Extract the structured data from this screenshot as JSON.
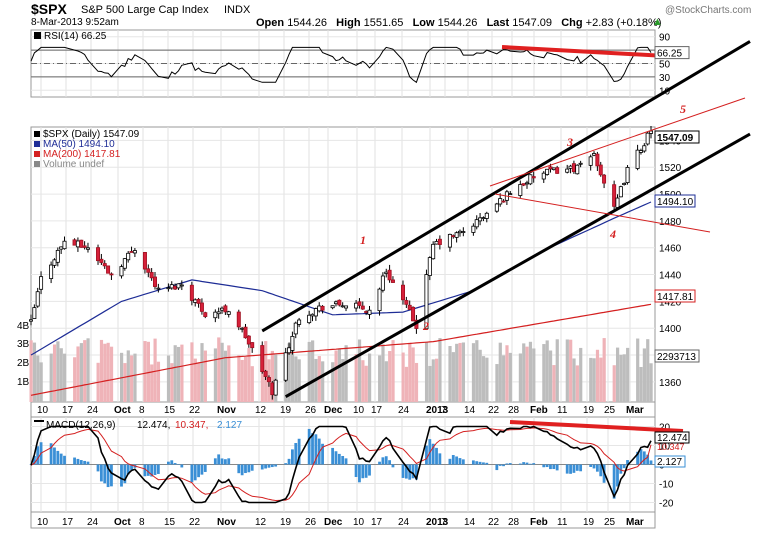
{
  "header": {
    "symbol": "$SPX",
    "name": "S&P 500 Large Cap Index",
    "exchange": "INDX",
    "timestamp": "8-Mar-2013 9:52am",
    "open_label": "Open",
    "open": "1544.26",
    "high_label": "High",
    "high": "1551.65",
    "low_label": "Low",
    "low": "1544.26",
    "last_label": "Last",
    "last": "1547.09",
    "chg_label": "Chg",
    "chg": "+2.83 (+0.18%)",
    "watermark": "@StockCharts.com"
  },
  "rsi": {
    "legend": "RSI(14) 66.25",
    "current": 66.25,
    "current_label": "66.25",
    "ticks": [
      90,
      70,
      50,
      30,
      10
    ],
    "levels": [
      70,
      50,
      30
    ]
  },
  "price": {
    "legend": [
      "$SPX (Daily) 1547.09",
      "MA(50) 1494.10",
      "MA(200) 1417.81",
      "Volume undef"
    ],
    "last_label": "1547.09",
    "ma50_label": "1494.10",
    "ma200_label": "1417.81",
    "volume_label": "2293713",
    "y_ticks": [
      1540,
      1520,
      1500,
      1480,
      1460,
      1440,
      1420,
      1400,
      1380,
      1360
    ],
    "volume_ticks": [
      "4B",
      "3B",
      "2B",
      "1B"
    ],
    "annotations": [
      "1",
      "2",
      "3",
      "4",
      "5"
    ]
  },
  "macd": {
    "legend_name": "MACD(12,26,9)",
    "macd_value": "12.474",
    "signal_value": "10.347",
    "hist_value": "2.127",
    "ticks": [
      20,
      10,
      0,
      -10,
      -20
    ]
  },
  "x_labels": [
    "10",
    "17",
    "24",
    "Oct",
    "8",
    "15",
    "22",
    "Nov",
    "12",
    "19",
    "26",
    "Dec",
    "10",
    "17",
    "24",
    "2013",
    "7",
    "14",
    "22",
    "28",
    "Feb",
    "11",
    "19",
    "25",
    "Mar"
  ],
  "chart_data": {
    "type": "candlestick",
    "title": "$SPX S&P 500 Large Cap Index INDX",
    "x_range": [
      "2012-09-04",
      "2013-03-08"
    ],
    "price": {
      "ylim": [
        1345,
        1550
      ],
      "close_path": [
        [
          "2012-09-04",
          1404
        ],
        [
          "2012-09-07",
          1437
        ],
        [
          "2012-09-14",
          1465
        ],
        [
          "2012-09-21",
          1460
        ],
        [
          "2012-09-28",
          1440
        ],
        [
          "2012-10-05",
          1460
        ],
        [
          "2012-10-12",
          1428
        ],
        [
          "2012-10-19",
          1433
        ],
        [
          "2012-10-26",
          1411
        ],
        [
          "2012-11-02",
          1414
        ],
        [
          "2012-11-07",
          1394
        ],
        [
          "2012-11-15",
          1353
        ],
        [
          "2012-11-23",
          1409
        ],
        [
          "2012-11-30",
          1416
        ],
        [
          "2012-12-07",
          1418
        ],
        [
          "2012-12-14",
          1413
        ],
        [
          "2012-12-19",
          1443
        ],
        [
          "2012-12-28",
          1402
        ],
        [
          "2013-01-02",
          1462
        ],
        [
          "2013-01-11",
          1472
        ],
        [
          "2013-01-18",
          1485
        ],
        [
          "2013-01-25",
          1502
        ],
        [
          "2013-02-01",
          1513
        ],
        [
          "2013-02-08",
          1518
        ],
        [
          "2013-02-15",
          1520
        ],
        [
          "2013-02-19",
          1530
        ],
        [
          "2013-02-25",
          1488
        ],
        [
          "2013-03-01",
          1518
        ],
        [
          "2013-03-08",
          1547
        ]
      ],
      "ma50": [
        [
          "2012-09-04",
          1380
        ],
        [
          "2012-10-01",
          1420
        ],
        [
          "2012-10-22",
          1436
        ],
        [
          "2012-11-12",
          1428
        ],
        [
          "2012-12-03",
          1410
        ],
        [
          "2012-12-24",
          1412
        ],
        [
          "2013-01-14",
          1428
        ],
        [
          "2013-02-04",
          1458
        ],
        [
          "2013-02-25",
          1482
        ],
        [
          "2013-03-08",
          1494.1
        ]
      ],
      "ma200": [
        [
          "2012-09-04",
          1350
        ],
        [
          "2012-11-01",
          1378
        ],
        [
          "2013-01-02",
          1390
        ],
        [
          "2013-03-08",
          1417.81
        ]
      ],
      "trend_channel_lower": [
        [
          "2012-11-19",
          1349
        ],
        [
          "2013-03-08",
          1503
        ]
      ],
      "trend_channel_upper": [
        [
          "2012-11-12",
          1398
        ],
        [
          "2013-03-08",
          1570
        ]
      ]
    },
    "rsi14": {
      "last": 66.25,
      "ylim": [
        0,
        100
      ]
    },
    "macd": {
      "macd": 12.474,
      "signal": 10.347,
      "histogram": 2.127,
      "ylim": [
        -25,
        25
      ]
    },
    "volume_last": 2293713
  }
}
